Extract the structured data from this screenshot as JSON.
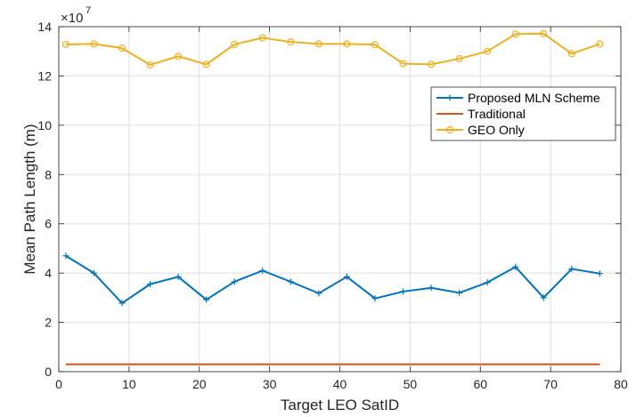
{
  "chart_data": {
    "type": "line",
    "title": "",
    "xlabel": "Target LEO SatID",
    "ylabel": "Mean Path Length (m)",
    "xlim": [
      0,
      80
    ],
    "ylim": [
      0,
      14
    ],
    "xticks": [
      0,
      10,
      20,
      30,
      40,
      50,
      60,
      70,
      80
    ],
    "yticks": [
      0,
      2,
      4,
      6,
      8,
      10,
      12,
      14
    ],
    "y_multiplier_base": "×10",
    "y_multiplier_exponent": "7",
    "grid": true,
    "legend_position": "top-right",
    "x": [
      1,
      5,
      9,
      13,
      17,
      21,
      25,
      29,
      33,
      37,
      41,
      45,
      49,
      53,
      57,
      61,
      65,
      69,
      73,
      77
    ],
    "series": [
      {
        "name": "Proposed MLN Scheme",
        "color": "#0072BD",
        "marker": "plus",
        "values": [
          4.7,
          4.0,
          2.78,
          3.55,
          3.85,
          2.92,
          3.65,
          4.1,
          3.65,
          3.18,
          3.85,
          2.97,
          3.25,
          3.4,
          3.2,
          3.62,
          4.25,
          3.0,
          4.17,
          3.98
        ]
      },
      {
        "name": "Traditional",
        "color": "#D95319",
        "marker": "none",
        "values": [
          0.3,
          0.3,
          0.3,
          0.3,
          0.3,
          0.3,
          0.3,
          0.3,
          0.3,
          0.3,
          0.3,
          0.3,
          0.3,
          0.3,
          0.3,
          0.3,
          0.3,
          0.3,
          0.3,
          0.3
        ]
      },
      {
        "name": "GEO Only",
        "color": "#EDB120",
        "marker": "circle",
        "values": [
          13.28,
          13.3,
          13.13,
          12.45,
          12.8,
          12.47,
          13.28,
          13.55,
          13.38,
          13.3,
          13.3,
          13.27,
          12.5,
          12.47,
          12.7,
          13.0,
          13.7,
          13.72,
          12.9,
          13.3
        ]
      }
    ]
  }
}
